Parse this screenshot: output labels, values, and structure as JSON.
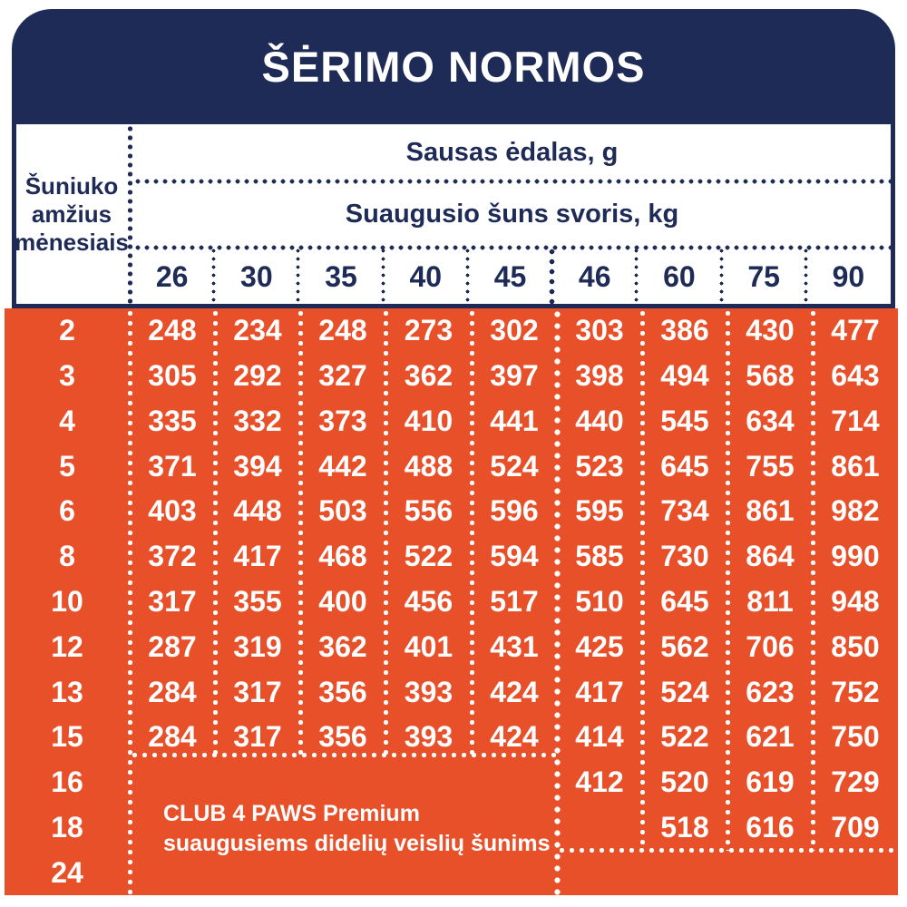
{
  "title": "ŠĖRIMO NORMOS",
  "header": {
    "age_label_lines": [
      "Šuniuko",
      "amžius",
      "mėnesiais"
    ],
    "dry_food_label": "Sausas ėdalas, g",
    "adult_weight_label": "Suaugusio šuns svoris, kg",
    "weights": [
      "26",
      "30",
      "35",
      "40",
      "45",
      "46",
      "60",
      "75",
      "90"
    ]
  },
  "note_lines": [
    "CLUB 4 PAWS Premium",
    "suaugusiems didelių veislių šunims"
  ],
  "colors": {
    "navy": "#1F2B57",
    "orange": "#E8502A",
    "text_on_orange": "#FFFFFF"
  },
  "chart_data": {
    "type": "table",
    "title": "ŠĖRIMO NORMOS",
    "row_header": "Šuniuko amžius mėnesiais",
    "column_group_label": "Sausas ėdalas, g",
    "column_header": "Suaugusio šuns svoris, kg",
    "columns_kg": [
      26,
      30,
      35,
      40,
      45,
      46,
      60,
      75,
      90
    ],
    "rows": [
      {
        "age_months": 2,
        "grams": [
          248,
          234,
          248,
          273,
          302,
          303,
          386,
          430,
          477
        ]
      },
      {
        "age_months": 3,
        "grams": [
          305,
          292,
          327,
          362,
          397,
          398,
          494,
          568,
          643
        ]
      },
      {
        "age_months": 4,
        "grams": [
          335,
          332,
          373,
          410,
          441,
          440,
          545,
          634,
          714
        ]
      },
      {
        "age_months": 5,
        "grams": [
          371,
          394,
          442,
          488,
          524,
          523,
          645,
          755,
          861
        ]
      },
      {
        "age_months": 6,
        "grams": [
          403,
          448,
          503,
          556,
          596,
          595,
          734,
          861,
          982
        ]
      },
      {
        "age_months": 8,
        "grams": [
          372,
          417,
          468,
          522,
          594,
          585,
          730,
          864,
          990
        ]
      },
      {
        "age_months": 10,
        "grams": [
          317,
          355,
          400,
          456,
          517,
          510,
          645,
          811,
          948
        ]
      },
      {
        "age_months": 12,
        "grams": [
          287,
          319,
          362,
          401,
          431,
          425,
          562,
          706,
          850
        ]
      },
      {
        "age_months": 13,
        "grams": [
          284,
          317,
          356,
          393,
          424,
          417,
          524,
          623,
          752
        ]
      },
      {
        "age_months": 15,
        "grams": [
          284,
          317,
          356,
          393,
          424,
          414,
          522,
          621,
          750
        ]
      },
      {
        "age_months": 16,
        "grams": [
          null,
          null,
          null,
          null,
          null,
          412,
          520,
          619,
          729
        ]
      },
      {
        "age_months": 18,
        "grams": [
          null,
          null,
          null,
          null,
          null,
          null,
          518,
          616,
          709
        ]
      },
      {
        "age_months": 24,
        "grams": [
          null,
          null,
          null,
          null,
          null,
          null,
          null,
          null,
          null
        ]
      }
    ],
    "merged_cell_note": "CLUB 4 PAWS Premium suaugusiems didelių veislių šunims"
  }
}
